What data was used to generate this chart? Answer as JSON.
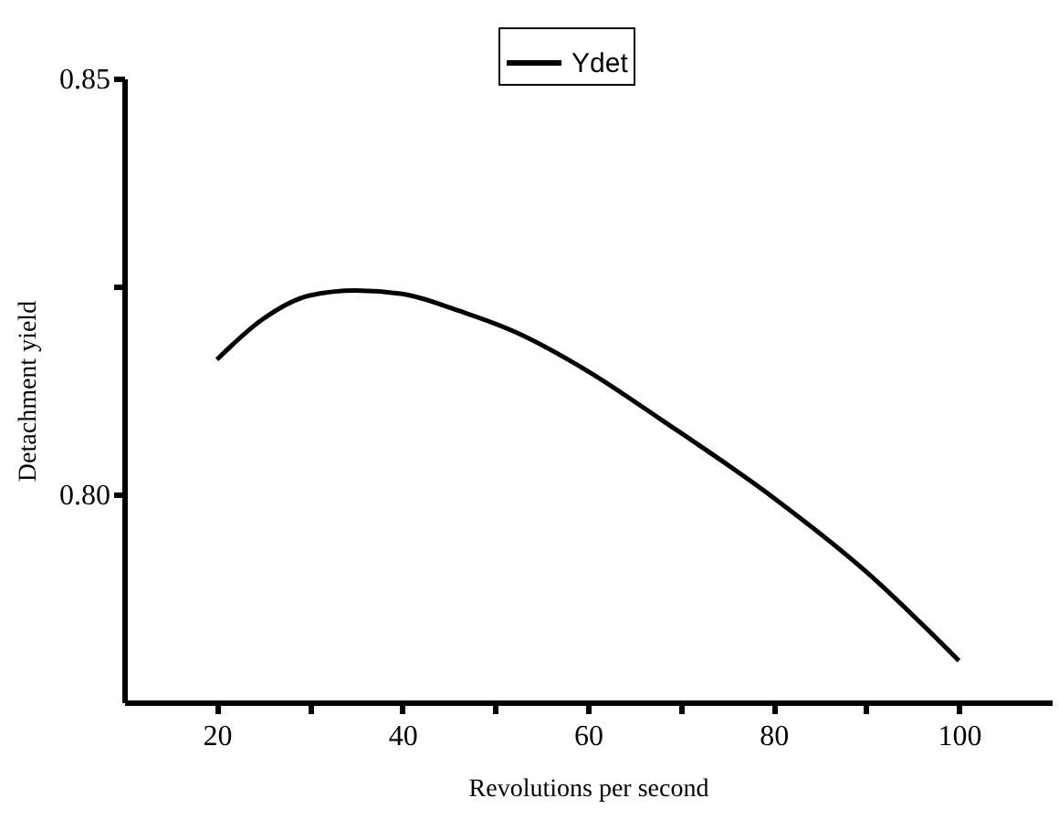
{
  "chart_data": {
    "type": "line",
    "xlabel": "Revolutions per second",
    "ylabel": "Detachment yield",
    "x": [
      20,
      25,
      30,
      35,
      40,
      46,
      52,
      60,
      68,
      80,
      90,
      100
    ],
    "series": [
      {
        "name": "Ydet",
        "color": "#000000",
        "values": [
          0.8162,
          0.8211,
          0.8239,
          0.8245,
          0.8241,
          0.8221,
          0.8196,
          0.8148,
          0.8089,
          0.7996,
          0.7907,
          0.78
        ]
      }
    ],
    "xlim": [
      10,
      110
    ],
    "xticks": [
      20,
      {
        "value": 30,
        "label": null
      },
      40,
      {
        "value": 50,
        "label": null
      },
      60,
      {
        "value": 70,
        "label": null
      },
      80,
      {
        "value": 90,
        "label": null
      },
      100
    ],
    "ylim": [
      0.775,
      0.85
    ],
    "yticks": [
      {
        "value": 0.8,
        "label": "0.80"
      },
      {
        "value": 0.825,
        "label": null
      },
      {
        "value": 0.85,
        "label": "0.85"
      }
    ],
    "grid": false,
    "legend": "top",
    "line_style": "solid",
    "marker": "none"
  }
}
